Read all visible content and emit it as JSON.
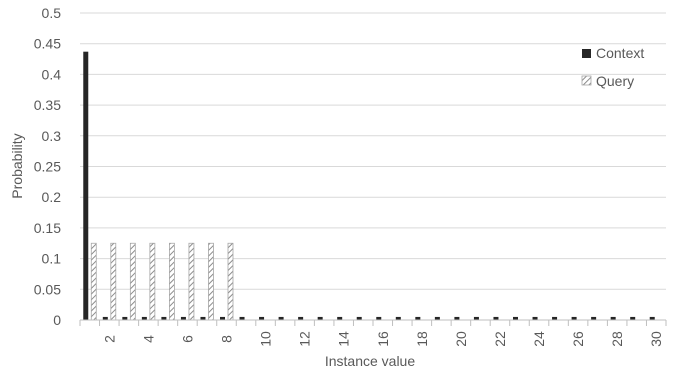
{
  "chart_data": {
    "type": "bar",
    "xlabel": "Instance value",
    "ylabel": "Probability",
    "ylim": [
      0,
      0.5
    ],
    "yticks": [
      "0",
      "0.05",
      "0.1",
      "0.15",
      "0.2",
      "0.25",
      "0.3",
      "0.35",
      "0.4",
      "0.45",
      "0.5"
    ],
    "categories": [
      1,
      2,
      3,
      4,
      5,
      6,
      7,
      8,
      9,
      10,
      11,
      12,
      13,
      14,
      15,
      16,
      17,
      18,
      19,
      20,
      21,
      22,
      23,
      24,
      25,
      26,
      27,
      28,
      29,
      30
    ],
    "xticks_shown": [
      "2",
      "4",
      "6",
      "8",
      "10",
      "12",
      "14",
      "16",
      "18",
      "20",
      "22",
      "24",
      "26",
      "28",
      "30"
    ],
    "grid": true,
    "legend_position": "top-right",
    "series": [
      {
        "name": "Context",
        "color": "#262626",
        "pattern": "solid",
        "values": [
          0.437,
          0.005,
          0.005,
          0.005,
          0.005,
          0.005,
          0.005,
          0.005,
          0.005,
          0.005,
          0.005,
          0.005,
          0.005,
          0.005,
          0.005,
          0.005,
          0.005,
          0.005,
          0.005,
          0.005,
          0.005,
          0.005,
          0.005,
          0.005,
          0.005,
          0.005,
          0.005,
          0.005,
          0.005,
          0.005
        ]
      },
      {
        "name": "Query",
        "color": "#a6a6a6",
        "pattern": "diagonal-hatch",
        "values": [
          0.125,
          0.125,
          0.125,
          0.125,
          0.125,
          0.125,
          0.125,
          0.125,
          0,
          0,
          0,
          0,
          0,
          0,
          0,
          0,
          0,
          0,
          0,
          0,
          0,
          0,
          0,
          0,
          0,
          0,
          0,
          0,
          0,
          0
        ]
      }
    ]
  }
}
